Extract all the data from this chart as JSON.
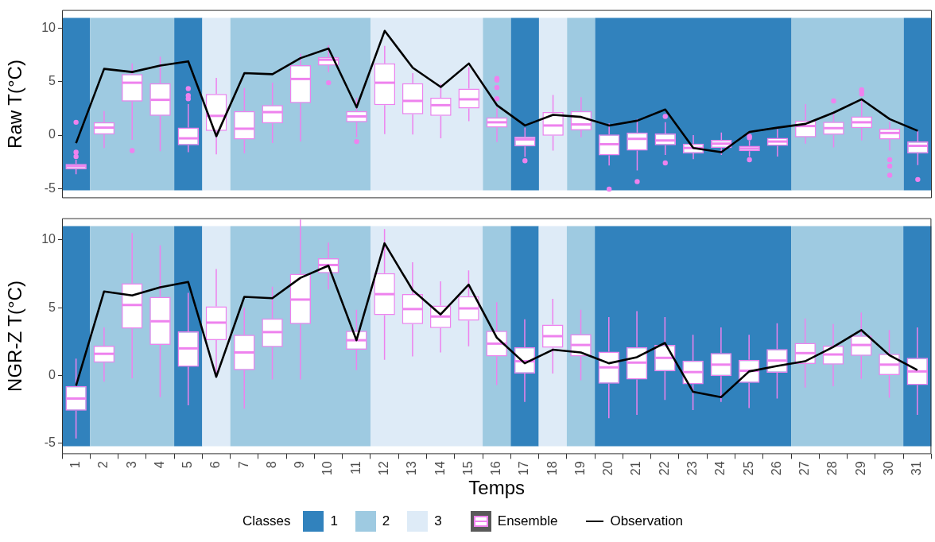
{
  "chart_data": [
    {
      "type": "box",
      "ylabel": "Raw T(°C)",
      "x": [
        1,
        2,
        3,
        4,
        5,
        6,
        7,
        8,
        9,
        10,
        11,
        12,
        13,
        14,
        15,
        16,
        17,
        18,
        19,
        20,
        21,
        22,
        23,
        24,
        25,
        26,
        27,
        28,
        29,
        30,
        31
      ],
      "xlim": [
        0.5,
        31.5
      ],
      "xticks": [
        1,
        2,
        3,
        4,
        5,
        6,
        7,
        8,
        9,
        10,
        11,
        12,
        13,
        14,
        15,
        16,
        17,
        18,
        19,
        20,
        21,
        22,
        23,
        24,
        25,
        26,
        27,
        28,
        29,
        30,
        31
      ],
      "ylim": [
        -5.9,
        11.7
      ],
      "yticks": [
        -5,
        0,
        5,
        10
      ],
      "tick_labels": "y",
      "legend": false,
      "bands": [
        {
          "axis": "x",
          "from": 0.5,
          "to": 1.5,
          "color": "#3182bd"
        },
        {
          "axis": "x",
          "from": 1.5,
          "to": 4.5,
          "color": "#9ecae1"
        },
        {
          "axis": "x",
          "from": 4.5,
          "to": 5.5,
          "color": "#3182bd"
        },
        {
          "axis": "x",
          "from": 5.5,
          "to": 6.5,
          "color": "#deebf7"
        },
        {
          "axis": "x",
          "from": 6.5,
          "to": 11.5,
          "color": "#9ecae1"
        },
        {
          "axis": "x",
          "from": 11.5,
          "to": 15.5,
          "color": "#deebf7"
        },
        {
          "axis": "x",
          "from": 15.5,
          "to": 16.5,
          "color": "#9ecae1"
        },
        {
          "axis": "x",
          "from": 16.5,
          "to": 17.5,
          "color": "#3182bd"
        },
        {
          "axis": "x",
          "from": 17.5,
          "to": 18.5,
          "color": "#deebf7"
        },
        {
          "axis": "x",
          "from": 18.5,
          "to": 19.5,
          "color": "#9ecae1"
        },
        {
          "axis": "x",
          "from": 19.5,
          "to": 26.5,
          "color": "#3182bd"
        },
        {
          "axis": "x",
          "from": 26.5,
          "to": 30.5,
          "color": "#9ecae1"
        },
        {
          "axis": "x",
          "from": 30.5,
          "to": 31.5,
          "color": "#3182bd"
        }
      ],
      "series": [
        {
          "type": "box",
          "color": "#ee82ee",
          "boxes": [
            {
              "low": -3.65,
              "q1": -3.2,
              "median": -2.9,
              "q3": -2.7,
              "high": -2.3,
              "outliers": [
                1.2,
                -1.6,
                -2.0
              ]
            },
            {
              "low": -1.2,
              "q1": 0.05,
              "median": 0.7,
              "q3": 1.2,
              "high": 2.25
            },
            {
              "low": -0.45,
              "q1": 3.15,
              "median": 4.9,
              "q3": 5.7,
              "high": 6.7,
              "outliers": [
                -1.45
              ]
            },
            {
              "low": -1.5,
              "q1": 1.8,
              "median": 3.3,
              "q3": 4.85,
              "high": 7.35
            },
            {
              "low": -1.6,
              "q1": -0.95,
              "median": -0.3,
              "q3": 0.7,
              "high": 2.9,
              "outliers": [
                4.35,
                3.7,
                3.4
              ]
            },
            {
              "low": -1.8,
              "q1": 0.4,
              "median": 1.8,
              "q3": 3.85,
              "high": 5.35
            },
            {
              "low": -1.7,
              "q1": -0.4,
              "median": 0.6,
              "q3": 2.25,
              "high": 4.4
            },
            {
              "low": -0.75,
              "q1": 1.1,
              "median": 2.15,
              "q3": 2.8,
              "high": 4.9
            },
            {
              "low": -0.6,
              "q1": 3.0,
              "median": 5.25,
              "q3": 6.55,
              "high": 7.6
            },
            {
              "low": 5.9,
              "q1": 6.5,
              "median": 7.05,
              "q3": 7.3,
              "high": 8.4,
              "outliers": [
                4.9
              ]
            },
            {
              "low": -0.2,
              "q1": 1.2,
              "median": 1.75,
              "q3": 2.25,
              "high": 3.5,
              "outliers": [
                -0.6
              ]
            },
            {
              "low": 0.1,
              "q1": 2.8,
              "median": 4.9,
              "q3": 6.7,
              "high": 8.35
            },
            {
              "low": 0.05,
              "q1": 1.95,
              "median": 3.2,
              "q3": 4.85,
              "high": 5.8
            },
            {
              "low": -0.3,
              "q1": 1.8,
              "median": 2.8,
              "q3": 3.5,
              "high": 4.8
            },
            {
              "low": 1.3,
              "q1": 2.5,
              "median": 3.35,
              "q3": 4.35,
              "high": 6.35
            },
            {
              "low": -0.65,
              "q1": 0.7,
              "median": 1.2,
              "q3": 1.65,
              "high": 2.55,
              "outliers": [
                5.3,
                5.15,
                4.45,
                3.4
              ]
            },
            {
              "low": -2.05,
              "q1": -1.05,
              "median": -0.4,
              "q3": -0.15,
              "high": 0.7,
              "outliers": [
                -2.4
              ]
            },
            {
              "low": -1.45,
              "q1": -0.05,
              "median": 0.9,
              "q3": 2.15,
              "high": 3.75
            },
            {
              "low": -0.2,
              "q1": 0.45,
              "median": 1.0,
              "q3": 2.25,
              "high": 3.55
            },
            {
              "low": -2.85,
              "q1": -1.9,
              "median": -0.85,
              "q3": 0.05,
              "high": 1.1,
              "outliers": [
                -5.05
              ]
            },
            {
              "low": -3.3,
              "q1": -1.45,
              "median": -0.35,
              "q3": 0.25,
              "high": 1.5,
              "outliers": [
                -4.35
              ]
            },
            {
              "low": -1.85,
              "q1": -0.95,
              "median": -0.5,
              "q3": 0.15,
              "high": 1.2,
              "outliers": [
                1.75,
                -2.6
              ]
            },
            {
              "low": -2.25,
              "q1": -1.7,
              "median": -1.2,
              "q3": -0.8,
              "high": 0
            },
            {
              "low": -1.85,
              "q1": -1.2,
              "median": -0.8,
              "q3": -0.45,
              "high": 0.25
            },
            {
              "low": -2.0,
              "q1": -1.5,
              "median": -1.25,
              "q3": -1.0,
              "high": -0.5,
              "outliers": [
                -0.1,
                -0.25,
                -2.3
              ]
            },
            {
              "low": -2.0,
              "q1": -1.0,
              "median": -0.6,
              "q3": -0.25,
              "high": 0.55
            },
            {
              "low": -0.8,
              "q1": -0.2,
              "median": 0.85,
              "q3": 1.35,
              "high": 2.9
            },
            {
              "low": -1.15,
              "q1": 0.0,
              "median": 0.65,
              "q3": 1.25,
              "high": 2.2,
              "outliers": [
                3.2
              ]
            },
            {
              "low": -0.5,
              "q1": 0.65,
              "median": 1.2,
              "q3": 1.75,
              "high": 3.35,
              "outliers": [
                4.25,
                4.1,
                3.85
              ]
            },
            {
              "low": -1.45,
              "q1": -0.4,
              "median": 0.2,
              "q3": 0.6,
              "high": 1.25,
              "outliers": [
                -2.3,
                -2.9,
                -3.75
              ]
            },
            {
              "low": -2.8,
              "q1": -1.7,
              "median": -1.0,
              "q3": -0.6,
              "high": 0.4,
              "outliers": [
                -4.15
              ]
            }
          ]
        },
        {
          "type": "line",
          "color": "#000000",
          "values": [
            -0.75,
            6.2,
            5.9,
            6.5,
            6.9,
            -0.1,
            5.8,
            5.7,
            7.2,
            8.1,
            2.6,
            9.75,
            6.3,
            4.5,
            6.7,
            2.8,
            0.9,
            1.9,
            1.7,
            0.9,
            1.35,
            2.4,
            -1.2,
            -1.6,
            0.3,
            0.7,
            1.05,
            2.1,
            3.35,
            1.5,
            0.4
          ]
        }
      ]
    },
    {
      "type": "box",
      "ylabel": "NGR-Z T(°C)",
      "xlabel": "Temps",
      "legend_title": "Classes",
      "x": [
        1,
        2,
        3,
        4,
        5,
        6,
        7,
        8,
        9,
        10,
        11,
        12,
        13,
        14,
        15,
        16,
        17,
        18,
        19,
        20,
        21,
        22,
        23,
        24,
        25,
        26,
        27,
        28,
        29,
        30,
        31
      ],
      "xlim": [
        0.5,
        31.5
      ],
      "xticks": [
        1,
        2,
        3,
        4,
        5,
        6,
        7,
        8,
        9,
        10,
        11,
        12,
        13,
        14,
        15,
        16,
        17,
        18,
        19,
        20,
        21,
        22,
        23,
        24,
        25,
        26,
        27,
        28,
        29,
        30,
        31
      ],
      "ylim": [
        -5.8,
        11.6
      ],
      "yticks": [
        -5,
        0,
        5,
        10
      ],
      "legend": "bottom",
      "bands": [
        {
          "axis": "x",
          "from": 0.5,
          "to": 1.5,
          "label": "1",
          "color": "#3182bd"
        },
        {
          "axis": "x",
          "from": 1.5,
          "to": 4.5,
          "label": "2",
          "color": "#9ecae1"
        },
        {
          "axis": "x",
          "from": 4.5,
          "to": 5.5,
          "color": "#3182bd"
        },
        {
          "axis": "x",
          "from": 5.5,
          "to": 6.5,
          "label": "3",
          "color": "#deebf7"
        },
        {
          "axis": "x",
          "from": 6.5,
          "to": 11.5,
          "color": "#9ecae1"
        },
        {
          "axis": "x",
          "from": 11.5,
          "to": 15.5,
          "color": "#deebf7"
        },
        {
          "axis": "x",
          "from": 15.5,
          "to": 16.5,
          "color": "#9ecae1"
        },
        {
          "axis": "x",
          "from": 16.5,
          "to": 17.5,
          "color": "#3182bd"
        },
        {
          "axis": "x",
          "from": 17.5,
          "to": 18.5,
          "color": "#deebf7"
        },
        {
          "axis": "x",
          "from": 18.5,
          "to": 19.5,
          "color": "#9ecae1"
        },
        {
          "axis": "x",
          "from": 19.5,
          "to": 26.5,
          "color": "#3182bd"
        },
        {
          "axis": "x",
          "from": 26.5,
          "to": 30.5,
          "color": "#9ecae1"
        },
        {
          "axis": "x",
          "from": 30.5,
          "to": 31.5,
          "color": "#3182bd"
        }
      ],
      "series": [
        {
          "type": "box",
          "name": "Ensemble",
          "color": "#ee82ee",
          "boxes": [
            {
              "low": -4.65,
              "q1": -2.6,
              "median": -1.7,
              "q3": -0.78,
              "high": 1.25
            },
            {
              "low": -0.45,
              "q1": 0.95,
              "median": 1.6,
              "q3": 2.2,
              "high": 3.55
            },
            {
              "low": -0.2,
              "q1": 3.45,
              "median": 5.2,
              "q3": 6.8,
              "high": 10.5
            },
            {
              "low": -1.6,
              "q1": 2.25,
              "median": 4.0,
              "q3": 5.8,
              "high": 9.6
            },
            {
              "low": -2.2,
              "q1": 0.65,
              "median": 2.0,
              "q3": 3.25,
              "high": 6.1
            },
            {
              "low": -0.1,
              "q1": 2.6,
              "median": 3.9,
              "q3": 5.1,
              "high": 7.85
            },
            {
              "low": -2.45,
              "q1": 0.4,
              "median": 1.7,
              "q3": 3.0,
              "high": 5.0
            },
            {
              "low": -0.3,
              "q1": 2.1,
              "median": 3.2,
              "q3": 4.2,
              "high": 6.55
            },
            {
              "low": -0.3,
              "q1": 3.8,
              "median": 5.6,
              "q3": 7.5,
              "high": 11.5
            },
            {
              "low": 6.35,
              "q1": 7.55,
              "median": 8.15,
              "q3": 8.65,
              "high": 9.8
            },
            {
              "low": 0.4,
              "q1": 1.9,
              "median": 2.6,
              "q3": 3.3,
              "high": 4.85
            },
            {
              "low": 1.15,
              "q1": 4.45,
              "median": 6.0,
              "q3": 7.55,
              "high": 10.8
            },
            {
              "low": 1.4,
              "q1": 3.8,
              "median": 4.9,
              "q3": 6.0,
              "high": 8.35
            },
            {
              "low": 1.7,
              "q1": 3.5,
              "median": 4.35,
              "q3": 5.15,
              "high": 6.95
            },
            {
              "low": 2.15,
              "q1": 4.05,
              "median": 4.95,
              "q3": 5.85,
              "high": 7.75
            },
            {
              "low": -0.7,
              "q1": 1.4,
              "median": 2.35,
              "q3": 3.3,
              "high": 5.4
            },
            {
              "low": -1.95,
              "q1": 0.15,
              "median": 1.05,
              "q3": 2.1,
              "high": 4.15
            },
            {
              "low": 0.15,
              "q1": 2.05,
              "median": 2.9,
              "q3": 3.75,
              "high": 5.65
            },
            {
              "low": -0.35,
              "q1": 1.4,
              "median": 2.25,
              "q3": 3.05,
              "high": 4.85
            },
            {
              "low": -3.15,
              "q1": -0.6,
              "median": 0.6,
              "q3": 1.75,
              "high": 4.3
            },
            {
              "low": -2.9,
              "q1": -0.3,
              "median": 0.95,
              "q3": 2.1,
              "high": 4.75
            },
            {
              "low": -1.8,
              "q1": 0.3,
              "median": 1.3,
              "q3": 2.25,
              "high": 4.3
            },
            {
              "low": -2.55,
              "q1": -0.65,
              "median": 0.25,
              "q3": 1.1,
              "high": 3.0
            },
            {
              "low": -1.95,
              "q1": -0.05,
              "median": 0.8,
              "q3": 1.65,
              "high": 3.55
            },
            {
              "low": -2.4,
              "q1": -0.55,
              "median": 0.35,
              "q3": 1.15,
              "high": 3.0
            },
            {
              "low": -1.7,
              "q1": 0.2,
              "median": 1.1,
              "q3": 1.95,
              "high": 3.85
            },
            {
              "low": -0.9,
              "q1": 0.85,
              "median": 1.65,
              "q3": 2.4,
              "high": 4.2
            },
            {
              "low": -0.8,
              "q1": 0.8,
              "median": 1.55,
              "q3": 2.2,
              "high": 3.8
            },
            {
              "low": -0.25,
              "q1": 1.45,
              "median": 2.25,
              "q3": 2.95,
              "high": 4.65
            },
            {
              "low": -1.65,
              "q1": 0.0,
              "median": 0.8,
              "q3": 1.6,
              "high": 3.35
            },
            {
              "low": -2.9,
              "q1": -0.7,
              "median": 0.3,
              "q3": 1.3,
              "high": 3.55
            }
          ]
        },
        {
          "type": "line",
          "name": "Observation",
          "color": "#000000",
          "values": [
            -0.75,
            6.2,
            5.9,
            6.5,
            6.9,
            -0.1,
            5.8,
            5.7,
            7.2,
            8.1,
            2.6,
            9.75,
            6.3,
            4.5,
            6.7,
            2.8,
            0.9,
            1.9,
            1.7,
            0.9,
            1.35,
            2.4,
            -1.2,
            -1.6,
            0.3,
            0.7,
            1.05,
            2.1,
            3.35,
            1.5,
            0.4
          ]
        }
      ]
    }
  ]
}
